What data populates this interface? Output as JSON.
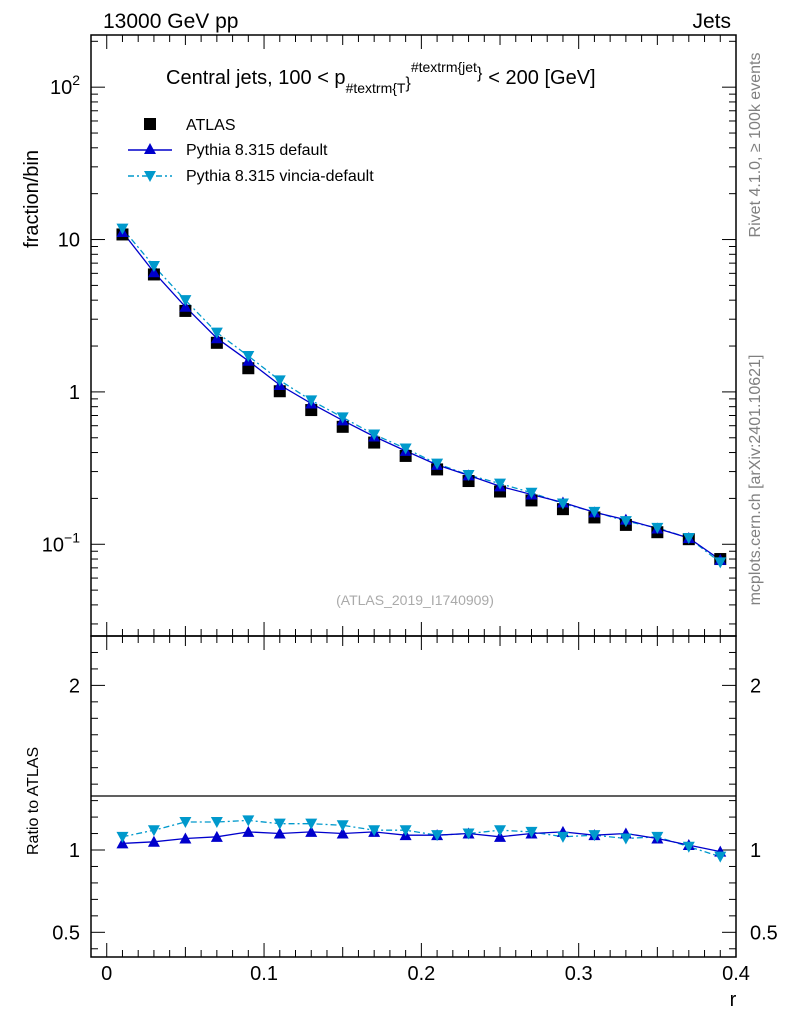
{
  "header": {
    "left_label": "13000 GeV pp",
    "right_label": "Jets"
  },
  "side_labels": {
    "top": "Rivet 4.1.0, ≥ 100k events",
    "bottom": "mcplots.cern.ch [arXiv:2401.10621]"
  },
  "chart_data": [
    {
      "type": "scatter",
      "panel": "main",
      "title_main": "Central jets, 100 < p",
      "title_sub": "#textrm{T",
      "title_sup": "#textrm{jet",
      "title_close_brace": "}",
      "title_tail": "< 200 [GeV]",
      "ylabel": "fraction/bin",
      "yscale": "log",
      "ylim": [
        0.025,
        220
      ],
      "xlim": [
        -0.01,
        0.4
      ],
      "y_tick_labels": [
        {
          "value": 100,
          "base": "10",
          "exp": "2"
        },
        {
          "value": 10,
          "base": "10",
          "exp": ""
        },
        {
          "value": 1,
          "base": "1",
          "exp": ""
        },
        {
          "value": 0.1,
          "base": "10",
          "exp": "−1"
        }
      ],
      "watermark": "(ATLAS_2019_I1740909)",
      "x": [
        0.01,
        0.03,
        0.05,
        0.07,
        0.09,
        0.11,
        0.13,
        0.15,
        0.17,
        0.19,
        0.21,
        0.23,
        0.25,
        0.27,
        0.29,
        0.31,
        0.33,
        0.35,
        0.37,
        0.39
      ],
      "series": [
        {
          "name": "ATLAS",
          "style": "data",
          "color": "#000000",
          "values": [
            10.8,
            5.9,
            3.4,
            2.1,
            1.43,
            1.01,
            0.76,
            0.59,
            0.465,
            0.38,
            0.31,
            0.26,
            0.222,
            0.194,
            0.17,
            0.15,
            0.134,
            0.12,
            0.108,
            0.08
          ]
        },
        {
          "name": "Pythia 8.315 default",
          "style": "solid",
          "color": "#0000cc",
          "values": [
            11.2,
            6.1,
            3.62,
            2.25,
            1.6,
            1.11,
            0.84,
            0.65,
            0.51,
            0.41,
            0.332,
            0.283,
            0.24,
            0.212,
            0.188,
            0.162,
            0.145,
            0.127,
            0.11,
            0.079
          ]
        },
        {
          "name": "Pythia 8.315 vincia-default",
          "style": "dashdot",
          "color": "#0099cc",
          "values": [
            11.8,
            6.7,
            4.0,
            2.45,
            1.72,
            1.19,
            0.88,
            0.68,
            0.525,
            0.425,
            0.338,
            0.285,
            0.25,
            0.218,
            0.185,
            0.163,
            0.142,
            0.128,
            0.11,
            0.076
          ]
        }
      ]
    },
    {
      "type": "line",
      "panel": "ratio",
      "ylabel": "Ratio to ATLAS",
      "xlabel": "r",
      "ylim": [
        0.35,
        2.3
      ],
      "xlim": [
        -0.01,
        0.4
      ],
      "y_tick_labels": [
        "2",
        "1",
        "0.5"
      ],
      "y_tick_values": [
        2,
        1,
        0.5
      ],
      "x_tick_labels": [
        "0",
        "0.1",
        "0.2",
        "0.3",
        "0.4"
      ],
      "x_tick_values": [
        0,
        0.1,
        0.2,
        0.3,
        0.4
      ],
      "x": [
        0.01,
        0.03,
        0.05,
        0.07,
        0.09,
        0.11,
        0.13,
        0.15,
        0.17,
        0.19,
        0.21,
        0.23,
        0.25,
        0.27,
        0.29,
        0.31,
        0.33,
        0.35,
        0.37,
        0.39
      ],
      "series": [
        {
          "name": "Pythia 8.315 default",
          "color": "#0000cc",
          "values": [
            1.04,
            1.05,
            1.07,
            1.08,
            1.11,
            1.1,
            1.11,
            1.1,
            1.11,
            1.09,
            1.09,
            1.1,
            1.08,
            1.1,
            1.11,
            1.09,
            1.1,
            1.07,
            1.03,
            0.99
          ]
        },
        {
          "name": "Pythia 8.315 vincia-default",
          "color": "#0099cc",
          "values": [
            1.08,
            1.12,
            1.17,
            1.17,
            1.18,
            1.16,
            1.16,
            1.15,
            1.12,
            1.12,
            1.09,
            1.1,
            1.12,
            1.11,
            1.08,
            1.09,
            1.07,
            1.08,
            1.02,
            0.96
          ]
        }
      ]
    }
  ]
}
